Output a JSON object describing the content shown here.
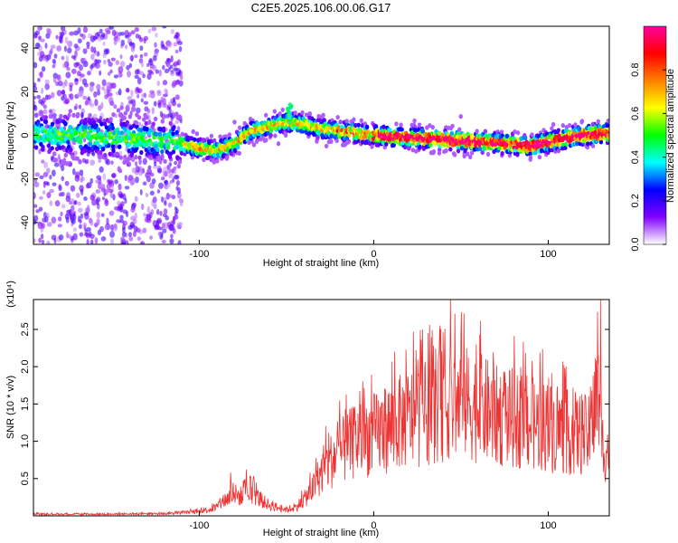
{
  "title": "C2E5.2025.106.00.06.G17",
  "chart_data": [
    {
      "type": "heatmap",
      "xlabel": "Height of straight line (km)",
      "ylabel": "Frequency (Hz)",
      "xlim": [
        -195,
        135
      ],
      "ylim": [
        -50,
        50
      ],
      "xticks": [
        -100,
        0,
        100
      ],
      "yticks": [
        -40,
        -20,
        0,
        20,
        40
      ],
      "colorbar": {
        "label": "Normalized spectral amplitude",
        "range": [
          0,
          1
        ],
        "ticks": [
          "0.0",
          "0.2",
          "0.4",
          "0.6",
          "0.8"
        ],
        "colormap": [
          "#ffffff",
          "#8000ff",
          "#0000ff",
          "#00ffff",
          "#00ff00",
          "#ffff00",
          "#ff8000",
          "#ff0000",
          "#ff00a0"
        ]
      },
      "ridge": {
        "x": [
          -195,
          -170,
          -150,
          -130,
          -115,
          -100,
          -90,
          -80,
          -70,
          -60,
          -50,
          -40,
          -30,
          -20,
          -10,
          0,
          20,
          40,
          60,
          80,
          90,
          100,
          120,
          135
        ],
        "y": [
          1,
          0,
          -1,
          -2,
          -3,
          -6,
          -7,
          -4,
          2,
          4,
          6,
          5,
          3,
          2,
          1,
          0,
          -1,
          -2,
          -3,
          -4,
          -5,
          -3,
          0,
          1
        ]
      },
      "spike": {
        "x": -48,
        "y": 14
      }
    },
    {
      "type": "line",
      "xlabel": "Height of straight line (km)",
      "ylabel": "SNR (10 * v/v)",
      "scale_label": "(x10⁴)",
      "xlim": [
        -195,
        135
      ],
      "ylim": [
        0,
        2.9
      ],
      "xticks": [
        -100,
        0,
        100
      ],
      "yticks": [
        "0.5",
        "1.0",
        "1.5",
        "2.0",
        "2.5"
      ],
      "color": "#ee3333",
      "envelope": {
        "x": [
          -195,
          -150,
          -120,
          -100,
          -90,
          -85,
          -80,
          -75,
          -70,
          -65,
          -60,
          -55,
          -50,
          -45,
          -40,
          -35,
          -30,
          -25,
          -20,
          -10,
          0,
          10,
          20,
          30,
          40,
          50,
          60,
          70,
          80,
          90,
          100,
          110,
          120,
          125,
          128,
          131,
          135
        ],
        "y": [
          0.03,
          0.03,
          0.04,
          0.08,
          0.15,
          0.3,
          0.4,
          0.35,
          0.45,
          0.3,
          0.2,
          0.15,
          0.12,
          0.15,
          0.3,
          0.5,
          0.8,
          1.0,
          1.15,
          1.4,
          1.5,
          1.65,
          1.8,
          1.9,
          2.05,
          2.1,
          2.0,
          1.85,
          1.8,
          1.7,
          1.65,
          1.55,
          1.5,
          1.45,
          2.4,
          1.3,
          1.2
        ]
      },
      "peaks": [
        {
          "x": 44,
          "y": 2.9
        },
        {
          "x": 130,
          "y": 2.9
        },
        {
          "x": 38,
          "y": 2.55
        },
        {
          "x": 28,
          "y": 2.5
        },
        {
          "x": 50,
          "y": 2.45
        },
        {
          "x": 12,
          "y": 2.2
        },
        {
          "x": -73,
          "y": 0.62
        },
        {
          "x": -82,
          "y": 0.58
        }
      ]
    }
  ]
}
